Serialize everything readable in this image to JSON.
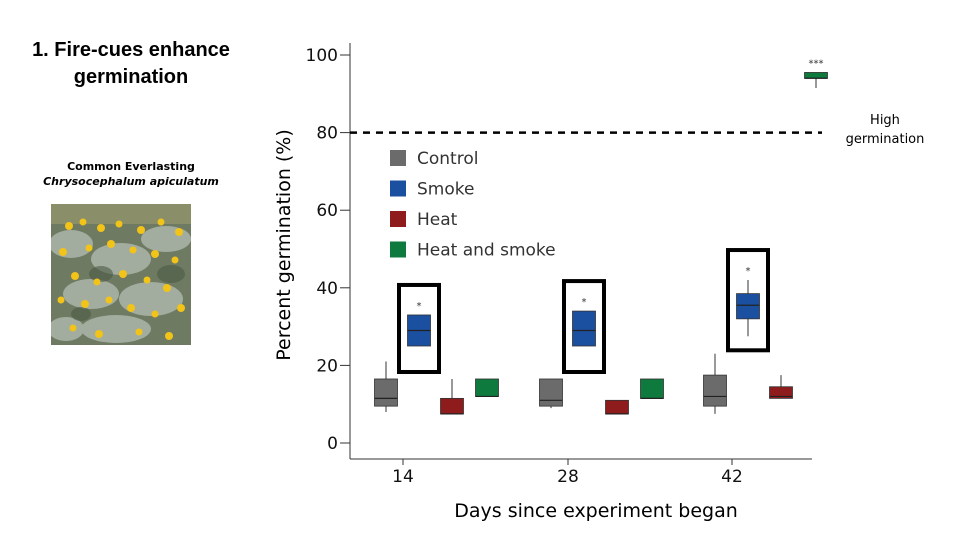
{
  "slide": {
    "title": "1. Fire-cues enhance germination",
    "species_common": "Common Everlasting",
    "species_scientific": "Chrysocephalum apiculatum",
    "photo_icon": "everlasting-flowers-photo",
    "high_note": "High germination"
  },
  "chart_data": {
    "type": "boxplot",
    "title": "",
    "xlabel": "Days since experiment began",
    "ylabel": "Percent germination (%)",
    "ylim": [
      0,
      100
    ],
    "yticks": [
      0,
      20,
      40,
      60,
      80,
      100
    ],
    "categories": [
      "14",
      "28",
      "42"
    ],
    "reference_line": {
      "value": 80,
      "label": "High germination",
      "style": "dashed"
    },
    "legend_position": "upper-left",
    "series": [
      {
        "name": "Control",
        "color": "#6b6b6b",
        "boxes": [
          {
            "day": "14",
            "min": 8,
            "q1": 9.5,
            "median": 11.5,
            "q3": 16.5,
            "max": 21
          },
          {
            "day": "28",
            "min": 9,
            "q1": 9.5,
            "median": 11,
            "q3": 16.5,
            "max": 16.5
          },
          {
            "day": "42",
            "min": 7.5,
            "q1": 9.5,
            "median": 12,
            "q3": 17.5,
            "max": 23
          }
        ]
      },
      {
        "name": "Smoke",
        "color": "#1b4fa0",
        "boxes": [
          {
            "day": "14",
            "min": 25,
            "q1": 25,
            "median": 29,
            "q3": 33,
            "max": 33,
            "sig": "*",
            "highlighted": true
          },
          {
            "day": "28",
            "min": 25,
            "q1": 25,
            "median": 29,
            "q3": 34,
            "max": 34,
            "sig": "*",
            "highlighted": true
          },
          {
            "day": "42",
            "min": 27.5,
            "q1": 32,
            "median": 35.5,
            "q3": 38.5,
            "max": 42,
            "sig": "*",
            "highlighted": true
          }
        ]
      },
      {
        "name": "Heat",
        "color": "#8e1c1c",
        "boxes": [
          {
            "day": "14",
            "min": 7.5,
            "q1": 7.5,
            "median": 7.5,
            "q3": 11.5,
            "max": 16.5
          },
          {
            "day": "28",
            "min": 7.5,
            "q1": 7.5,
            "median": 7.5,
            "q3": 11,
            "max": 11
          },
          {
            "day": "42",
            "min": 11.5,
            "q1": 11.5,
            "median": 12,
            "q3": 14.5,
            "max": 17.5
          }
        ]
      },
      {
        "name": "Heat and smoke",
        "color": "#0f7a3e",
        "boxes": [
          {
            "day": "14",
            "min": 12,
            "q1": 12,
            "median": 12,
            "q3": 16.5,
            "max": 16.5
          },
          {
            "day": "28",
            "min": 11.5,
            "q1": 11.5,
            "median": 11.5,
            "q3": 16.5,
            "max": 16.5
          },
          {
            "day": "42",
            "min": 91.5,
            "q1": 94,
            "median": 94,
            "q3": 95.5,
            "max": 95.5,
            "sig": "***"
          }
        ]
      }
    ]
  }
}
